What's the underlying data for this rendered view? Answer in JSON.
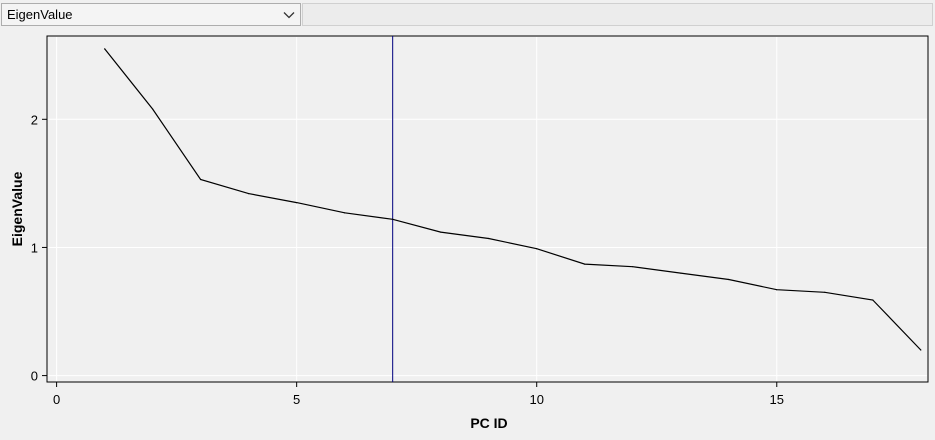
{
  "selector": {
    "value": "EigenValue"
  },
  "chart_data": {
    "type": "line",
    "xlabel": "PC ID",
    "ylabel": "EigenValue",
    "xlim": [
      -0.2,
      18.15
    ],
    "ylim": [
      -0.05,
      2.65
    ],
    "x_ticks": [
      0,
      5,
      10,
      15
    ],
    "y_ticks": [
      0,
      1,
      2
    ],
    "grid": true,
    "series": [
      {
        "x": [
          1,
          2,
          3,
          4,
          5,
          6,
          7,
          8,
          9,
          10,
          11,
          12,
          13,
          14,
          15,
          16,
          17,
          18
        ],
        "values": [
          2.55,
          2.08,
          1.53,
          1.42,
          1.35,
          1.27,
          1.22,
          1.12,
          1.07,
          0.99,
          0.87,
          0.85,
          0.8,
          0.75,
          0.67,
          0.65,
          0.59,
          0.2
        ],
        "color": "#000000"
      }
    ],
    "marker_line_x": 7,
    "marker_line_color": "#00007f",
    "plot_background": "#f0f0f0",
    "grid_color": "#ffffff"
  }
}
